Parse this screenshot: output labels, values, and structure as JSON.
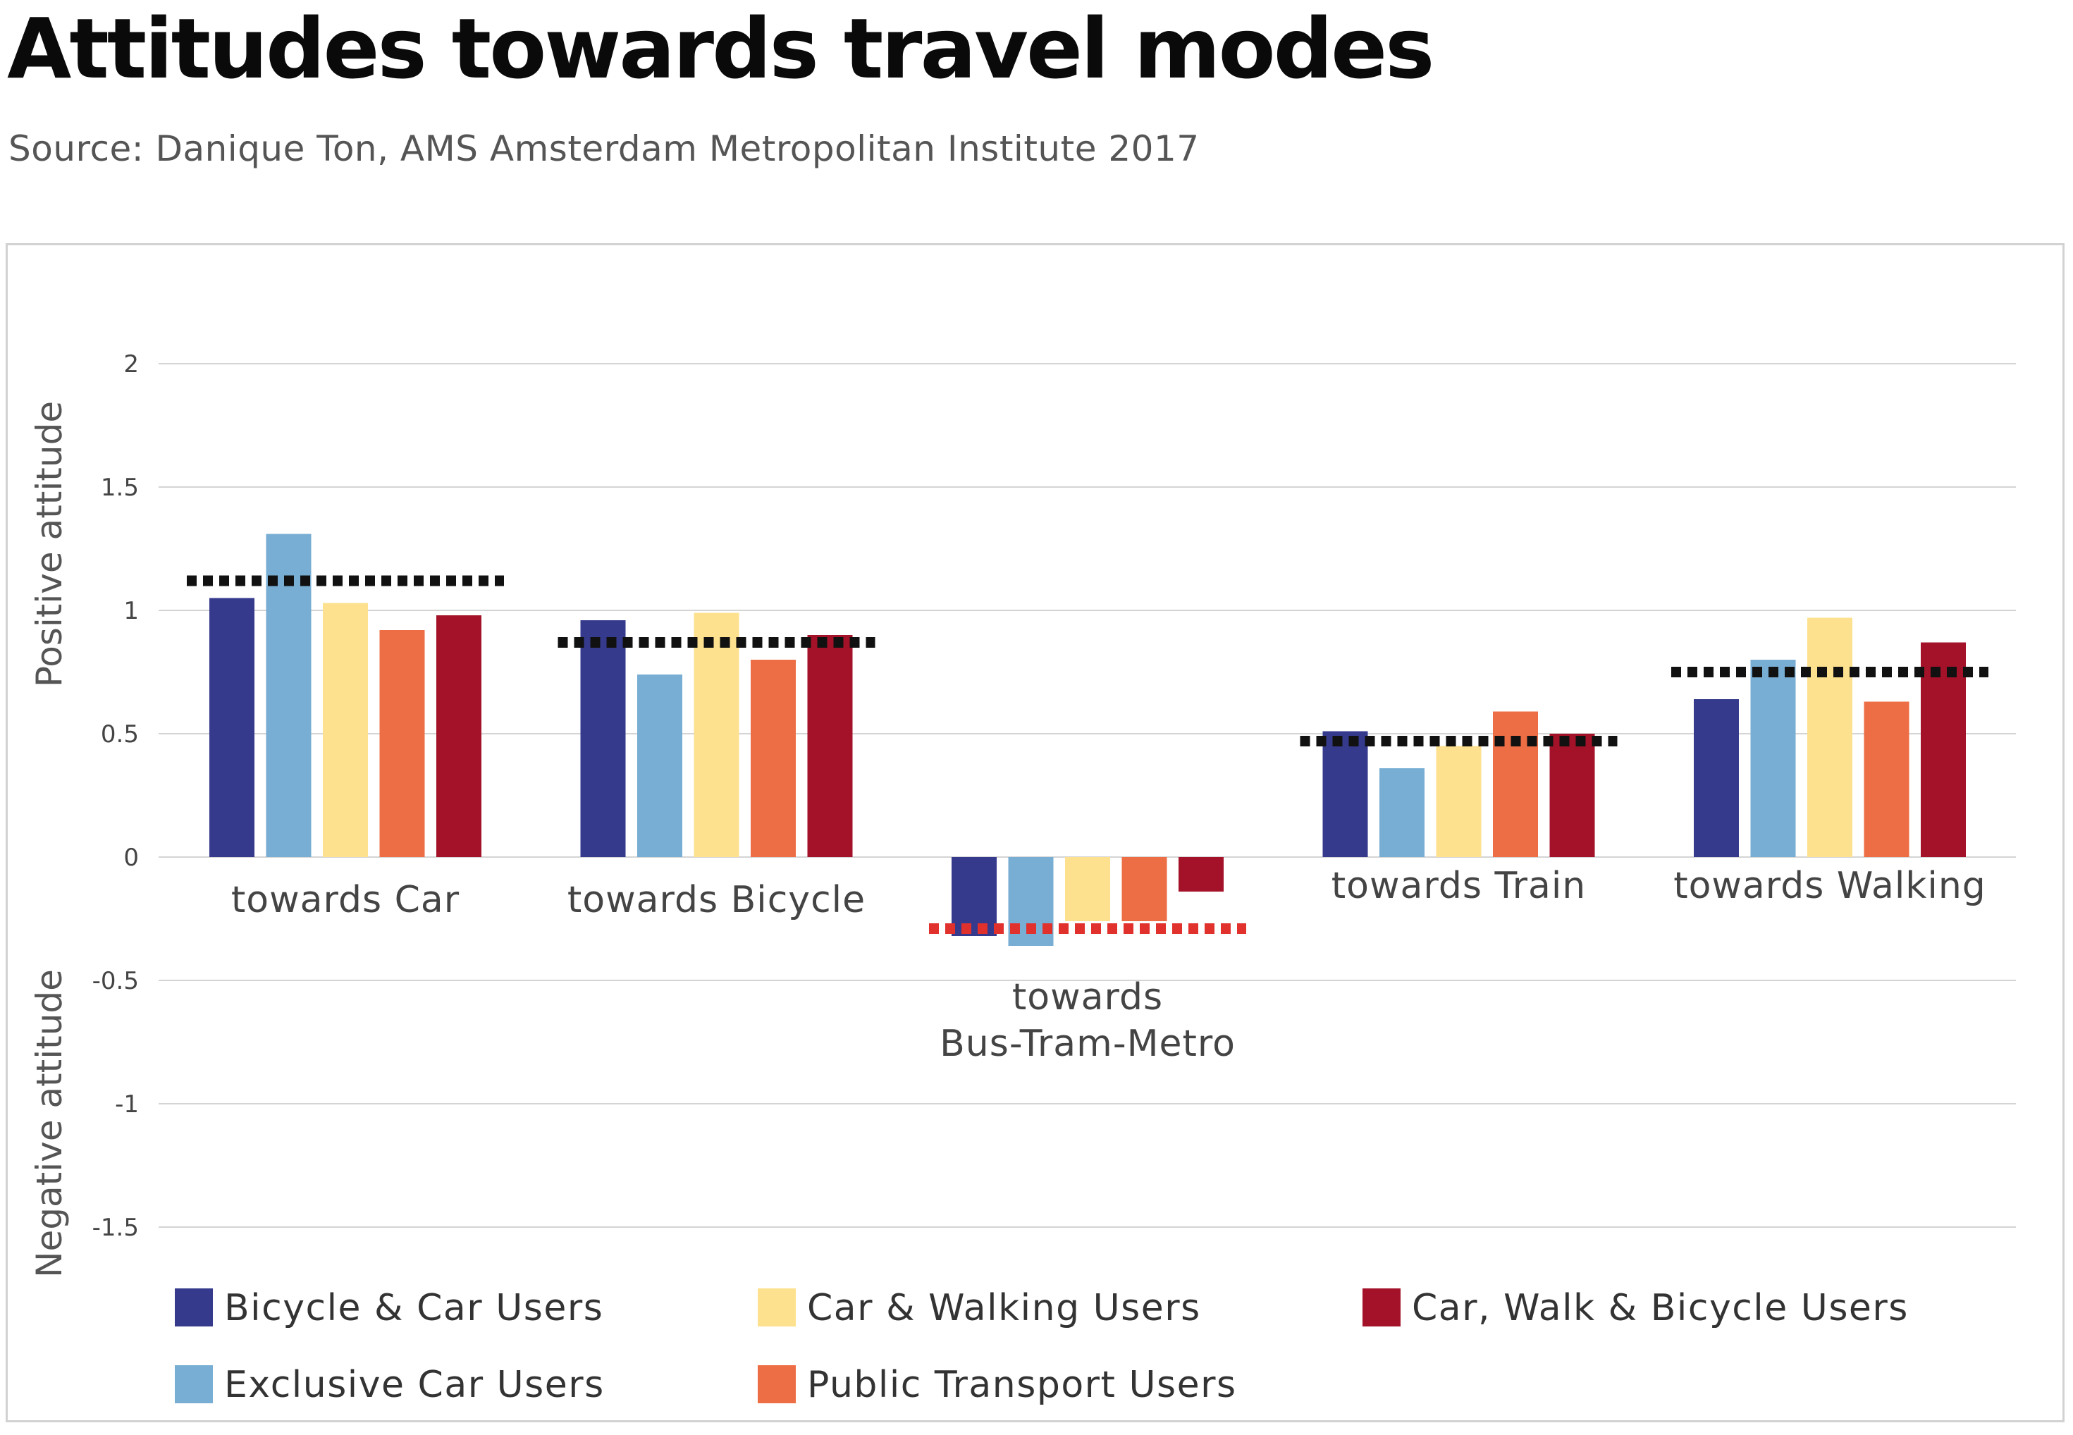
{
  "title": "Attitudes towards travel modes",
  "subtitle": "Source: Danique Ton, AMS Amsterdam Metropolitan Institute 2017",
  "chart_data": {
    "type": "bar",
    "title": "Attitudes towards travel modes",
    "ylabel_positive": "Positive attitude",
    "ylabel_negative": "Negative attitude",
    "ylim": [
      -1.5,
      2
    ],
    "yticks": [
      2,
      1.5,
      1,
      0.5,
      0,
      -0.5,
      -1,
      -1.5
    ],
    "ytick_labels": [
      "2",
      "1.5",
      "1",
      "0.5",
      "0",
      "-0.5",
      "-1",
      "-1.5"
    ],
    "grid": true,
    "legend_position": "bottom",
    "categories": [
      [
        "towards Car"
      ],
      [
        "towards Bicycle"
      ],
      [
        "towards",
        "Bus-Tram-Metro"
      ],
      [
        "towards Train"
      ],
      [
        "towards Walking"
      ]
    ],
    "series": [
      {
        "name": "Bicycle & Car Users",
        "color": "#353a8c",
        "values": [
          1.05,
          0.96,
          -0.32,
          0.51,
          0.64
        ]
      },
      {
        "name": "Exclusive Car Users",
        "color": "#78aed3",
        "values": [
          1.31,
          0.74,
          -0.36,
          0.36,
          0.8
        ]
      },
      {
        "name": "Car & Walking Users",
        "color": "#fde18e",
        "values": [
          1.03,
          0.99,
          -0.26,
          0.45,
          0.97
        ]
      },
      {
        "name": "Public Transport Users",
        "color": "#ed6e45",
        "values": [
          0.92,
          0.8,
          -0.26,
          0.59,
          0.63
        ]
      },
      {
        "name": "Car, Walk & Bicycle Users",
        "color": "#a31228",
        "values": [
          0.98,
          0.9,
          -0.14,
          0.5,
          0.87
        ]
      }
    ],
    "averages": [
      {
        "value": 1.12,
        "color": "#111111"
      },
      {
        "value": 0.87,
        "color": "#111111"
      },
      {
        "value": -0.29,
        "color": "#e0312d"
      },
      {
        "value": 0.47,
        "color": "#111111"
      },
      {
        "value": 0.75,
        "color": "#111111"
      }
    ],
    "legend_rows": [
      [
        "Bicycle & Car Users",
        "Car & Walking Users",
        "Car, Walk & Bicycle Users"
      ],
      [
        "Exclusive Car Users",
        "Public Transport Users"
      ]
    ]
  }
}
